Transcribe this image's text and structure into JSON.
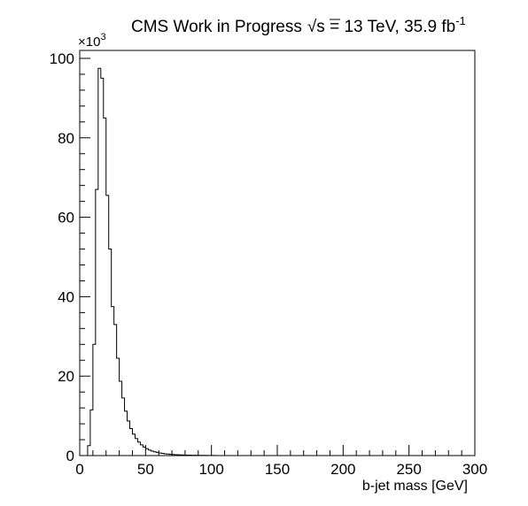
{
  "chart_data": {
    "type": "histogram",
    "title_prefix": "CMS Work in Progress",
    "title_sqrt_symbol": "√s",
    "title_suffix": " = 13 TeV, 35.9 fb",
    "title_superscript": "-1",
    "xlabel": "b-jet mass [GeV]",
    "ylabel": "",
    "y_multiplier_base": "×10",
    "y_multiplier_exponent": "3",
    "xlim": [
      0,
      300
    ],
    "ylim": [
      0,
      102
    ],
    "x_ticks": [
      0,
      50,
      100,
      150,
      200,
      250,
      300
    ],
    "x_tick_labels": [
      "0",
      "50",
      "100",
      "150",
      "200",
      "250",
      "300"
    ],
    "y_ticks": [
      0,
      20,
      40,
      60,
      80,
      100
    ],
    "y_tick_labels": [
      "0",
      "20",
      "40",
      "60",
      "80",
      "100"
    ],
    "bin_width": 2,
    "x_start": 0,
    "values": [
      0,
      0,
      0,
      2.5,
      11.5,
      28,
      67,
      97.5,
      95,
      85,
      65.5,
      52,
      37.5,
      33,
      24.5,
      18.7,
      14.5,
      11.2,
      8.7,
      6.8,
      5.4,
      4.3,
      3.4,
      2.7,
      2.15,
      1.75,
      1.4,
      1.15,
      0.95,
      0.8,
      0.65,
      0.55,
      0.45,
      0.38,
      0.32,
      0.27,
      0.23,
      0.2,
      0.17,
      0.14,
      0.12,
      0.1,
      0.09,
      0.08,
      0.07,
      0.06,
      0.05,
      0.05,
      0.04,
      0.04,
      0.03,
      0.03
    ],
    "grid": false,
    "line_color": "#000000"
  }
}
